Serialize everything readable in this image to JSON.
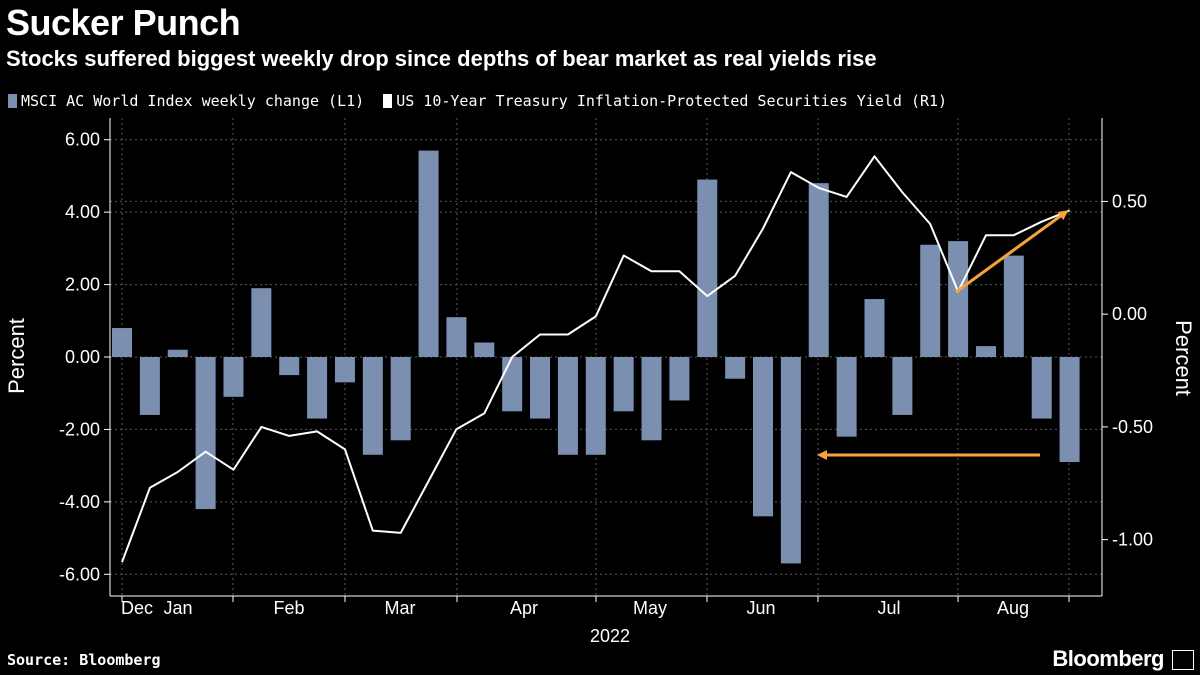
{
  "title": "Sucker Punch",
  "subtitle": "Stocks suffered biggest weekly drop since depths of bear market as real yields rise",
  "source": "Source: Bloomberg",
  "brand": "Bloomberg",
  "chart_data": {
    "type": "bar+line",
    "series": [
      {
        "name": "MSCI AC World Index weekly change (L1)",
        "type": "bar",
        "axis": "left",
        "color": "#7b8fb0",
        "values": [
          0.8,
          -1.6,
          0.2,
          -4.2,
          -1.1,
          1.9,
          -0.5,
          -1.7,
          -0.7,
          -2.7,
          -2.3,
          5.7,
          1.1,
          0.4,
          -1.5,
          -1.7,
          -2.7,
          -2.7,
          -1.5,
          -2.3,
          -1.2,
          4.9,
          -0.6,
          -4.4,
          -5.7,
          4.8,
          -2.2,
          1.6,
          -1.6,
          3.1,
          3.2,
          0.3,
          2.8,
          -1.7,
          -2.9
        ]
      },
      {
        "name": "US 10-Year Treasury Inflation-Protected Securities Yield (R1)",
        "type": "line",
        "axis": "right",
        "color": "#ffffff",
        "values": [
          -1.1,
          -0.77,
          -0.7,
          -0.61,
          -0.69,
          -0.5,
          -0.54,
          -0.52,
          -0.6,
          -0.96,
          -0.97,
          -0.74,
          -0.51,
          -0.44,
          -0.19,
          -0.09,
          -0.09,
          -0.01,
          0.26,
          0.19,
          0.19,
          0.08,
          0.17,
          0.38,
          0.63,
          0.56,
          0.52,
          0.7,
          0.54,
          0.4,
          0.1,
          0.35,
          0.35,
          0.41,
          0.46
        ]
      }
    ],
    "x_axis": {
      "month_labels": [
        "Dec",
        "Jan",
        "Feb",
        "Mar",
        "Apr",
        "May",
        "Jun",
        "Jul",
        "Aug"
      ],
      "year_label": "2022"
    },
    "y_left": {
      "label": "Percent",
      "ticks": [
        "6.00",
        "4.00",
        "2.00",
        "0.00",
        "-2.00",
        "-4.00",
        "-6.00"
      ],
      "range": [
        -6.6,
        6.6
      ]
    },
    "y_right": {
      "label": "Percent",
      "ticks": [
        "0.50",
        "0.00",
        "-0.50",
        "-1.00"
      ],
      "range": [
        -1.25,
        0.87
      ]
    },
    "annotations": [
      {
        "type": "arrow",
        "color": "#f7a23c",
        "description": "from yield trough to latest yield"
      },
      {
        "type": "arrow",
        "color": "#f7a23c",
        "description": "from latest bar back to comparable drop"
      }
    ],
    "grid": true
  }
}
